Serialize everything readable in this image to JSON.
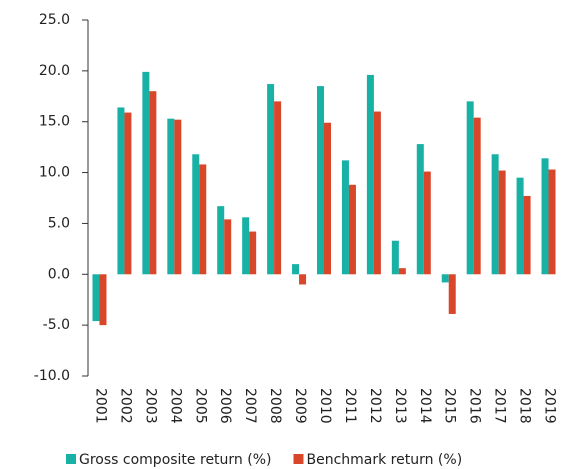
{
  "chart_data": {
    "type": "bar",
    "categories": [
      "2001",
      "2002",
      "2003",
      "2004",
      "2005",
      "2006",
      "2007",
      "2008",
      "2009",
      "2010",
      "2011",
      "2012",
      "2013",
      "2014",
      "2015",
      "2016",
      "2017",
      "2018",
      "2019"
    ],
    "series": [
      {
        "name": "Gross composite return (%)",
        "color": "#17b1a6",
        "values": [
          -4.6,
          16.4,
          19.9,
          15.3,
          11.8,
          6.7,
          5.6,
          18.7,
          1.0,
          18.5,
          11.2,
          19.6,
          3.3,
          12.8,
          -0.8,
          17.0,
          11.8,
          9.5,
          11.4
        ]
      },
      {
        "name": "Benchmark return (%)",
        "color": "#d9472b",
        "values": [
          -5.0,
          15.9,
          18.0,
          15.2,
          10.8,
          5.4,
          4.2,
          17.0,
          -1.0,
          14.9,
          8.8,
          16.0,
          0.6,
          10.1,
          -3.9,
          15.4,
          10.2,
          7.7,
          10.3
        ]
      }
    ],
    "ylim": [
      -10,
      25
    ],
    "yticks": [
      {
        "value": -10,
        "label": "-10.0"
      },
      {
        "value": -5,
        "label": "-5.0"
      },
      {
        "value": 0,
        "label": "0.0"
      },
      {
        "value": 5,
        "label": "5.0"
      },
      {
        "value": 10,
        "label": "10.0"
      },
      {
        "value": 15,
        "label": "15.0"
      },
      {
        "value": 20,
        "label": "20.0"
      },
      {
        "value": 25,
        "label": "25.0"
      }
    ],
    "grid": false,
    "legend": "bottom"
  }
}
